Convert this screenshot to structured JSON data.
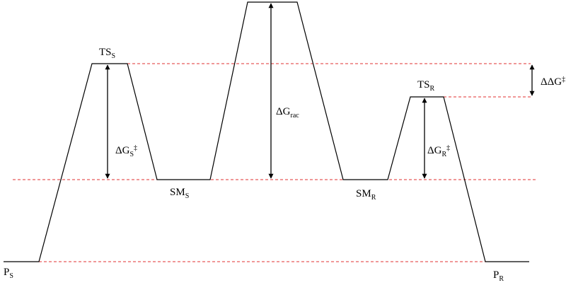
{
  "labels": {
    "ts_s": {
      "base": "TS",
      "sub": "S"
    },
    "sm_s": {
      "base": "SM",
      "sub": "S"
    },
    "ts_r": {
      "base": "TS",
      "sub": "R"
    },
    "sm_r": {
      "base": "SM",
      "sub": "R"
    },
    "p_s": {
      "base": "P",
      "sub": "S"
    },
    "p_r": {
      "base": "P",
      "sub": "R"
    },
    "dg_s": {
      "base": "ΔG",
      "sub": "S",
      "sup": "‡"
    },
    "dg_rac": {
      "base": "ΔG",
      "sub": "rac"
    },
    "dg_r": {
      "base": "ΔG",
      "sub": "R",
      "sup": "‡"
    },
    "ddg": {
      "base": "ΔΔG",
      "sup": "‡"
    }
  }
}
